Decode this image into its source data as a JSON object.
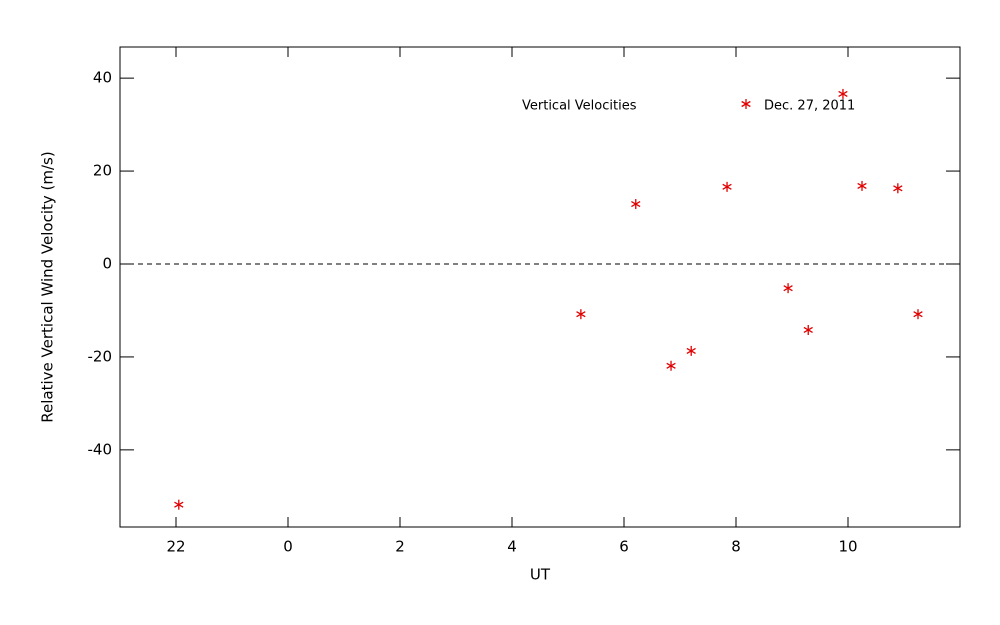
{
  "chart_data": {
    "type": "scatter",
    "xlabel": "UT",
    "ylabel": "Relative Vertical Wind Velocity (m/s)",
    "legend_title": "Vertical Velocities",
    "series": [
      {
        "name": "Dec. 27, 2011",
        "color": "#e00000",
        "x": [
          -1.95,
          5.23,
          6.21,
          6.84,
          7.2,
          7.84,
          8.93,
          9.29,
          9.91,
          10.25,
          10.89,
          11.25
        ],
        "values": [
          -51.8,
          -10.8,
          12.9,
          -21.9,
          -18.7,
          16.6,
          -5.2,
          -14.2,
          36.6,
          16.8,
          16.3,
          -10.8
        ]
      }
    ],
    "xlim": [
      -3,
      12
    ],
    "xticks": [
      {
        "value": -2,
        "label": "22"
      },
      0,
      2,
      4,
      6,
      8,
      10
    ],
    "ylim": [
      -56.6,
      46.7
    ],
    "yticks": [
      -40,
      -20,
      0,
      20,
      40
    ],
    "hline": 0
  }
}
